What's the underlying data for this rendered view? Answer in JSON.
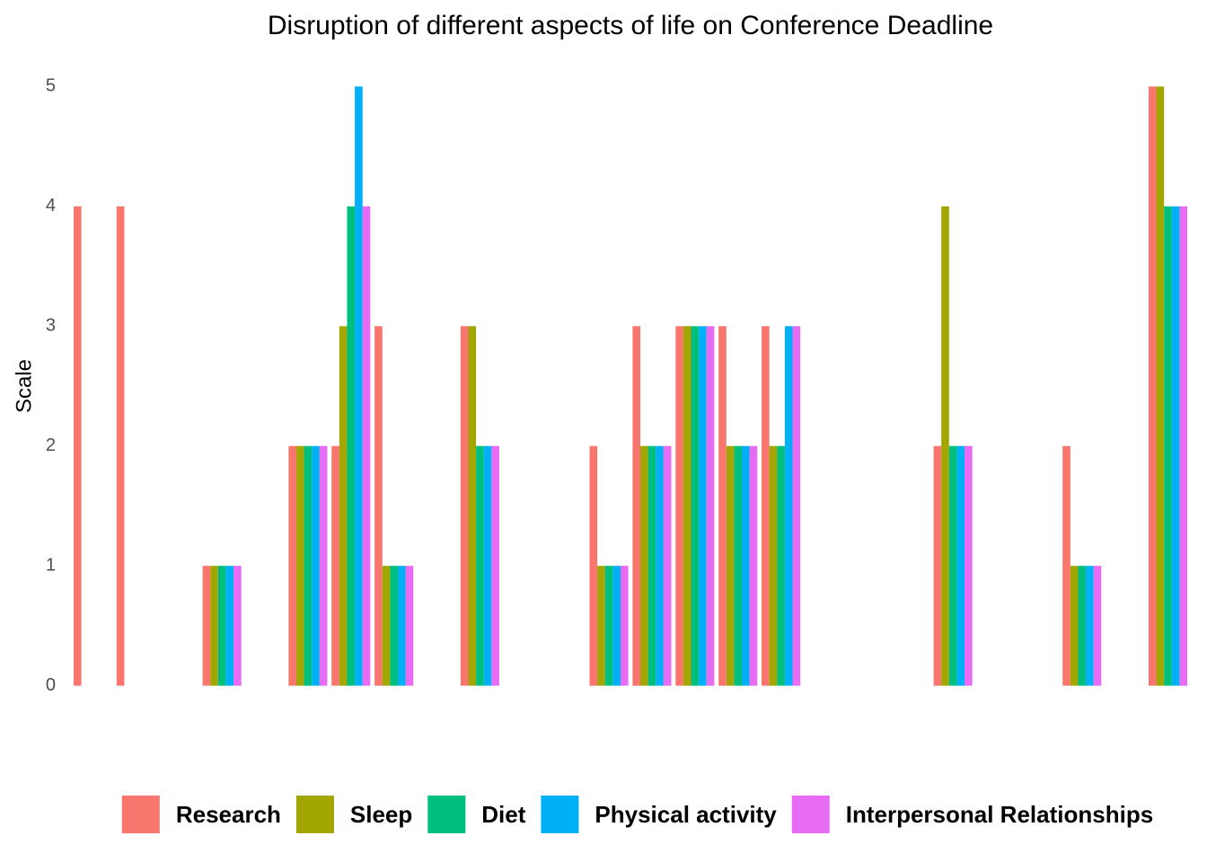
{
  "chart_data": {
    "type": "bar",
    "title": "Disruption of different aspects of life on Conference Deadline",
    "y_label": "Scale",
    "categories": [
      null,
      null,
      null,
      null,
      null,
      null,
      null,
      null,
      null,
      null,
      null,
      null,
      null,
      null,
      null,
      null,
      null,
      null,
      null,
      null,
      null,
      null,
      null,
      null,
      null,
      null
    ],
    "series": [
      {
        "name": "Research",
        "color": "#F8766D",
        "values": [
          4,
          4,
          0,
          1,
          0,
          2,
          2,
          3,
          0,
          3,
          0,
          0,
          2,
          3,
          3,
          3,
          3,
          0,
          0,
          0,
          2,
          0,
          0,
          2,
          0,
          5
        ]
      },
      {
        "name": "Sleep",
        "color": "#A3A500",
        "values": [
          0,
          0,
          0,
          1,
          0,
          2,
          3,
          1,
          0,
          3,
          0,
          0,
          1,
          2,
          3,
          2,
          2,
          0,
          0,
          0,
          4,
          0,
          0,
          1,
          0,
          5
        ]
      },
      {
        "name": "Diet",
        "color": "#00BF7D",
        "values": [
          0,
          0,
          0,
          1,
          0,
          2,
          4,
          1,
          0,
          2,
          0,
          0,
          1,
          2,
          3,
          2,
          2,
          0,
          0,
          0,
          2,
          0,
          0,
          1,
          0,
          4
        ]
      },
      {
        "name": "Physical activity",
        "color": "#00B0F6",
        "values": [
          0,
          0,
          0,
          1,
          0,
          2,
          5,
          1,
          0,
          2,
          0,
          0,
          1,
          2,
          3,
          2,
          3,
          0,
          0,
          0,
          2,
          0,
          0,
          1,
          0,
          4
        ]
      },
      {
        "name": "Interpersonal Relationships",
        "color": "#E76BF3",
        "values": [
          0,
          0,
          0,
          1,
          0,
          2,
          4,
          1,
          0,
          2,
          0,
          0,
          1,
          2,
          3,
          2,
          3,
          0,
          0,
          0,
          2,
          0,
          0,
          1,
          0,
          4
        ]
      }
    ],
    "ylim": [
      -0.25,
      5.25
    ],
    "yticks": [
      0,
      1,
      2,
      3,
      4,
      5
    ],
    "grid": false,
    "legend": "bottom"
  }
}
